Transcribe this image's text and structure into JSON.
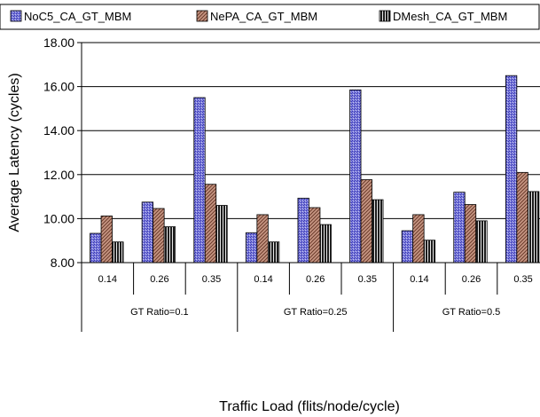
{
  "chart_data": {
    "type": "bar",
    "xlabel": "Traffic Load (flits/node/cycle)",
    "ylabel": "Average Latency (cycles)",
    "ylim": [
      8.0,
      18.0
    ],
    "yticks": [
      "8.00",
      "10.00",
      "12.00",
      "14.00",
      "16.00",
      "18.00"
    ],
    "grid": "horizontal",
    "legend_position": "top",
    "groups": [
      {
        "label": "GT Ratio=0.1",
        "categories": [
          "0.14",
          "0.26",
          "0.35"
        ]
      },
      {
        "label": "GT Ratio=0.25",
        "categories": [
          "0.14",
          "0.26",
          "0.35"
        ]
      },
      {
        "label": "GT Ratio=0.5",
        "categories": [
          "0.14",
          "0.26",
          "0.35"
        ]
      }
    ],
    "categories": [
      "0.14",
      "0.26",
      "0.35",
      "0.14",
      "0.26",
      "0.35",
      "0.14",
      "0.26",
      "0.35"
    ],
    "series": [
      {
        "name": "NoC5_CA_GT_MBM",
        "color": "#6f6fd8",
        "values": [
          9.33,
          10.75,
          15.5,
          9.36,
          10.93,
          15.85,
          9.45,
          11.2,
          16.5
        ]
      },
      {
        "name": "NePA_CA_GT_MBM",
        "color": "#b27a68",
        "values": [
          10.12,
          10.46,
          11.56,
          10.18,
          10.5,
          11.77,
          10.18,
          10.64,
          12.1
        ]
      },
      {
        "name": "DMesh_CA_GT_MBM",
        "color": "#3a3a3a",
        "values": [
          8.94,
          9.63,
          10.6,
          8.94,
          9.73,
          10.86,
          9.02,
          9.9,
          11.23
        ]
      }
    ]
  }
}
